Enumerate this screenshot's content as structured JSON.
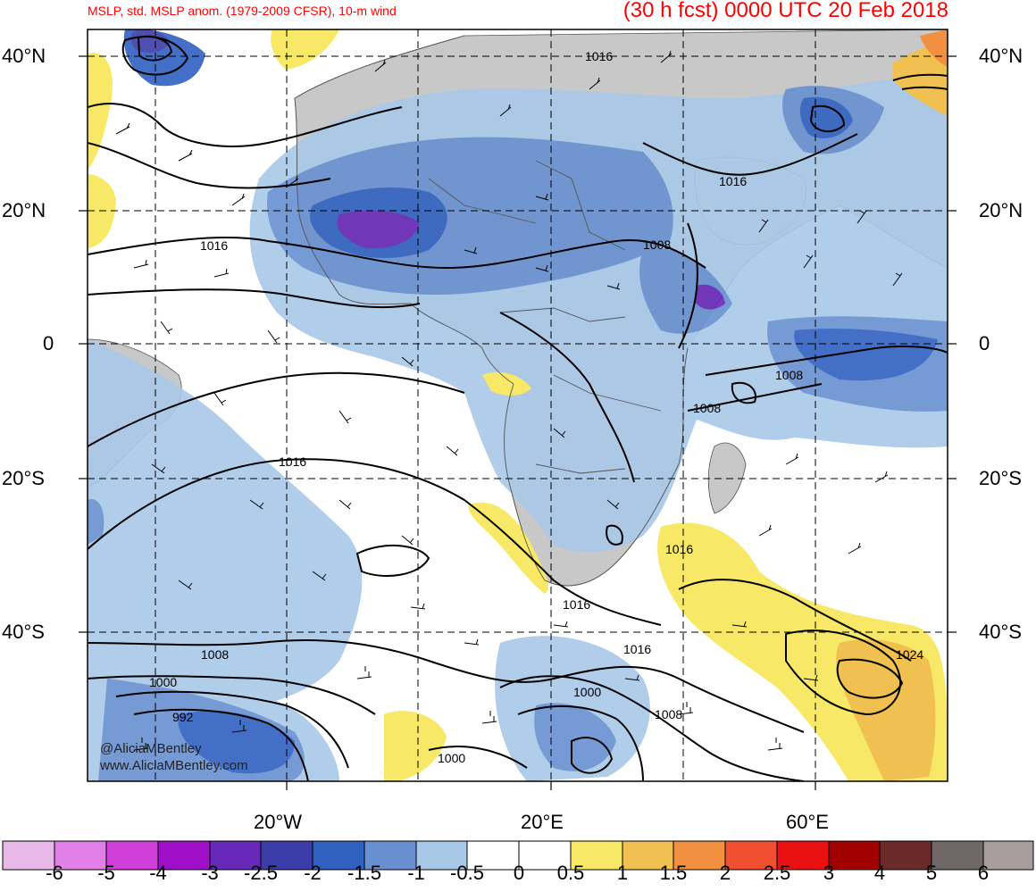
{
  "header": {
    "title_left": "MSLP, std. MSLP anom. (1979-2009 CFSR), 10-m wind",
    "title_right": "(30 h fcst) 0000 UTC 20 Feb 2018"
  },
  "axes": {
    "lat_left": [
      "40°N",
      "20°N",
      "0",
      "20°S",
      "40°S"
    ],
    "lat_right": [
      "40°N",
      "20°N",
      "0",
      "20°S",
      "40°S"
    ],
    "lon_bottom": [
      "20°W",
      "20°E",
      "60°E"
    ]
  },
  "isobar_labels": [
    "1016",
    "1016",
    "1008",
    "1016",
    "1008",
    "1008",
    "1016",
    "1016",
    "1016",
    "1016",
    "1008",
    "1000",
    "992",
    "1000",
    "1008",
    "1000",
    "1024"
  ],
  "watermark": {
    "line1": "@AliciaMBentley",
    "line2": "www.AliciaMBentley.com"
  },
  "colorbar": {
    "labels": [
      "-6",
      "-5",
      "-4",
      "-3",
      "-2.5",
      "-2",
      "-1.5",
      "-1",
      "-0.5",
      "0",
      "0.5",
      "1",
      "1.5",
      "2",
      "2.5",
      "3",
      "4",
      "5",
      "6"
    ],
    "colors": [
      "#e8b8e8",
      "#e080e8",
      "#d040d8",
      "#a010c8",
      "#6828b8",
      "#3c3ca8",
      "#3060c0",
      "#6890d0",
      "#a8c8e8",
      "#ffffff",
      "#ffffff",
      "#f8e868",
      "#f0c050",
      "#f09040",
      "#f05030",
      "#e81010",
      "#a00000",
      "#6a2a2a",
      "#706868",
      "#a89e9e"
    ]
  },
  "colors": {
    "land": "#c8c8c8",
    "title": "#ff0000"
  }
}
